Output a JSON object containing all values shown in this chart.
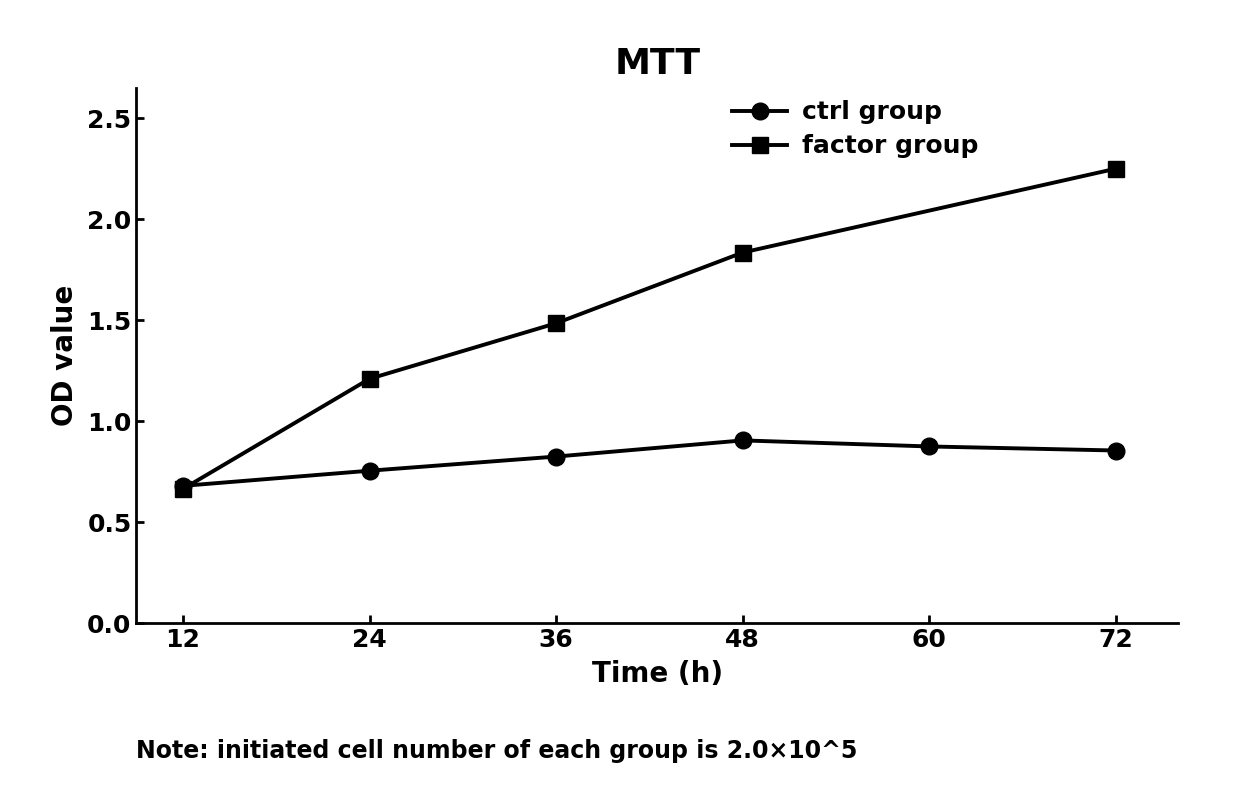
{
  "title": "MTT",
  "xlabel": "Time (h)",
  "ylabel": "OD value",
  "x_values": [
    12,
    24,
    36,
    48,
    60,
    72
  ],
  "ctrl_group": [
    0.68,
    0.755,
    0.825,
    0.905,
    0.875,
    0.855
  ],
  "factor_x": [
    12,
    24,
    36,
    48,
    72
  ],
  "factor_y": [
    0.665,
    1.21,
    1.485,
    1.835,
    2.25
  ],
  "xlim": [
    9,
    76
  ],
  "ylim": [
    0.0,
    2.65
  ],
  "yticks": [
    0.0,
    0.5,
    1.0,
    1.5,
    2.0,
    2.5
  ],
  "xticks": [
    12,
    24,
    36,
    48,
    60,
    72
  ],
  "line_color": "#000000",
  "marker_ctrl": "o",
  "marker_factor": "s",
  "legend_labels": [
    "ctrl group",
    "factor group"
  ],
  "note_text": "Note: initiated cell number of each group is 2.0×10^5",
  "title_fontsize": 26,
  "label_fontsize": 20,
  "tick_fontsize": 18,
  "legend_fontsize": 18,
  "note_fontsize": 17,
  "line_width": 2.8,
  "marker_size": 12
}
